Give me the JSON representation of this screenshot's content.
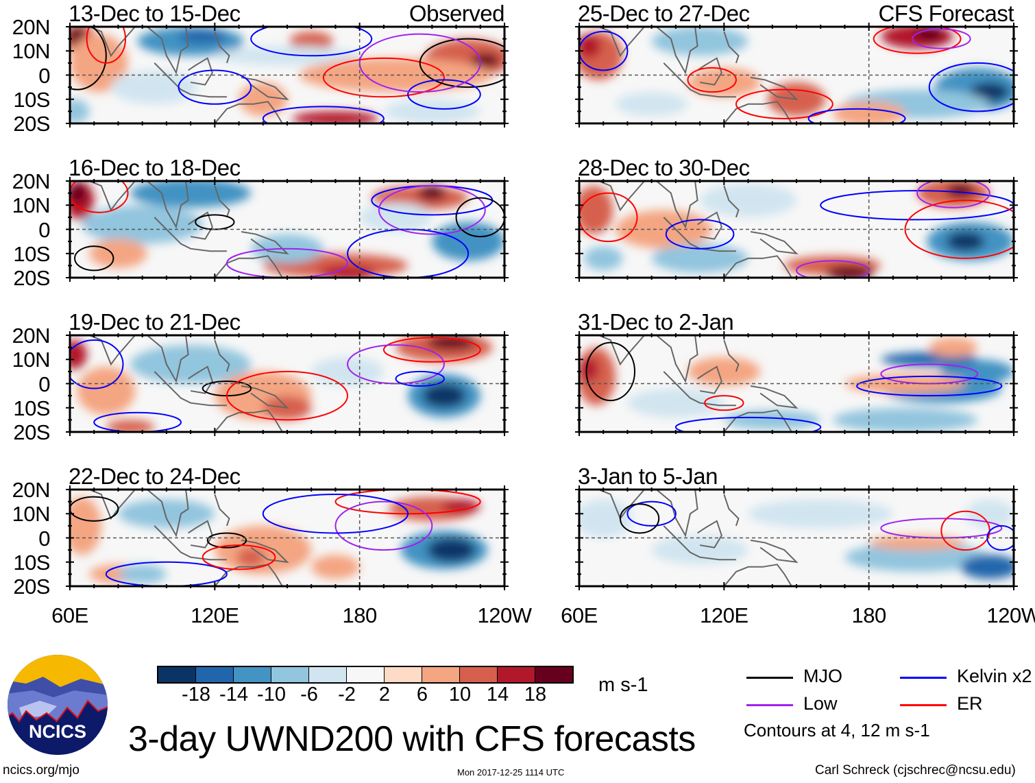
{
  "panels": [
    {
      "title": "13-Dec to 15-Dec",
      "tag": "Observed"
    },
    {
      "title": "25-Dec to 27-Dec",
      "tag": "CFS Forecast"
    },
    {
      "title": "16-Dec to 18-Dec",
      "tag": ""
    },
    {
      "title": "28-Dec to 30-Dec",
      "tag": ""
    },
    {
      "title": "19-Dec to 21-Dec",
      "tag": ""
    },
    {
      "title": "31-Dec to 2-Jan",
      "tag": ""
    },
    {
      "title": "22-Dec to 24-Dec",
      "tag": ""
    },
    {
      "title": "3-Jan to 5-Jan",
      "tag": ""
    }
  ],
  "y_ticks": [
    "20N",
    "10N",
    "0",
    "10S",
    "20S"
  ],
  "x_ticks": [
    "60E",
    "120E",
    "180",
    "120W"
  ],
  "colorbar": {
    "labels": [
      "-18",
      "-14",
      "-10",
      "-6",
      "-2",
      "2",
      "6",
      "10",
      "14",
      "18"
    ],
    "colors": [
      "#0b3466",
      "#2166ac",
      "#4393c3",
      "#92c5de",
      "#d1e5f0",
      "#f7f7f7",
      "#fddbc7",
      "#f4a582",
      "#d6604d",
      "#b2182b",
      "#67001f"
    ],
    "units": "m s-1"
  },
  "legend": {
    "items": [
      {
        "label": "MJO",
        "color": "#000000"
      },
      {
        "label": "Kelvin x2",
        "color": "#0000ff"
      },
      {
        "label": "Low",
        "color": "#a020f0"
      },
      {
        "label": "ER",
        "color": "#ff0000"
      }
    ],
    "note": "Contours at 4, 12 m s-1"
  },
  "title": "3-day UWND200 with CFS forecasts",
  "logo_text": "NCICS",
  "footer": {
    "left": "ncics.org/mjo",
    "center": "Mon 2017-12-25 1114 UTC",
    "right": "Carl Schreck (cjschrec@ncsu.edu)"
  }
}
